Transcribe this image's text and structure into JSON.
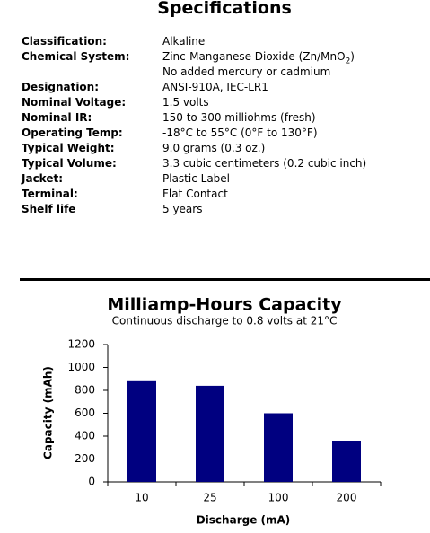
{
  "specs": {
    "title": "Specifications",
    "rows": [
      {
        "label": "Classification:",
        "lines": [
          "Alkaline"
        ]
      },
      {
        "label": "Chemical System:",
        "lines": [
          {
            "text": "Zinc-Manganese Dioxide (Zn/MnO",
            "sub": "2",
            "after": ")"
          },
          "No added mercury or cadmium"
        ]
      },
      {
        "label": "Designation:",
        "lines": [
          "ANSI-910A, IEC-LR1"
        ]
      },
      {
        "label": "Nominal Voltage:",
        "lines": [
          "1.5 volts"
        ]
      },
      {
        "label": "Nominal IR:",
        "lines": [
          "150 to 300 milliohms (fresh)"
        ]
      },
      {
        "label": "Operating Temp:",
        "lines": [
          "-18°C to 55°C (0°F to 130°F)"
        ]
      },
      {
        "label": "Typical Weight:",
        "lines": [
          "9.0 grams (0.3 oz.)"
        ]
      },
      {
        "label": "Typical Volume:",
        "lines": [
          "3.3 cubic centimeters (0.2 cubic inch)"
        ]
      },
      {
        "label": "Jacket:",
        "lines": [
          "Plastic Label"
        ]
      },
      {
        "label": "Terminal:",
        "lines": [
          "Flat Contact"
        ]
      },
      {
        "label": "Shelf life",
        "lines": [
          "5 years"
        ]
      }
    ]
  },
  "chart_data": {
    "type": "bar",
    "title": "Milliamp-Hours Capacity",
    "subtitle": "Continuous discharge to 0.8 volts at 21°C",
    "x_label": "Discharge (mA)",
    "y_label": "Capacity (mAh)",
    "categories": [
      "10",
      "25",
      "100",
      "200"
    ],
    "values": [
      880,
      840,
      600,
      360
    ],
    "color": "#000080",
    "ylim": [
      0,
      1200
    ],
    "yticks": [
      0,
      200,
      400,
      600,
      800,
      1000,
      1200
    ]
  }
}
